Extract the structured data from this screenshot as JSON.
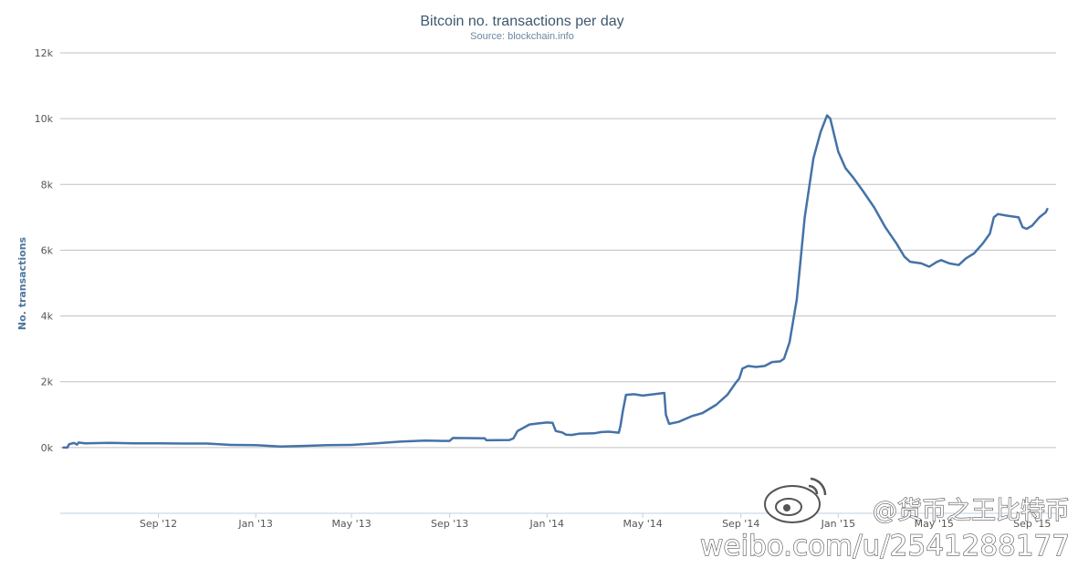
{
  "chart_data": {
    "type": "line",
    "title": "Bitcoin no. transactions per day",
    "subtitle": "Source: blockchain.info",
    "ylabel": "No. transactions",
    "xlabel": "",
    "y_min": -2000,
    "y_max": 12000,
    "y_ticks": [
      {
        "value": 0,
        "label": "0k"
      },
      {
        "value": 2000,
        "label": "2k"
      },
      {
        "value": 4000,
        "label": "4k"
      },
      {
        "value": 6000,
        "label": "6k"
      },
      {
        "value": 8000,
        "label": "8k"
      },
      {
        "value": 10000,
        "label": "10k"
      },
      {
        "value": 12000,
        "label": "12k"
      }
    ],
    "x_start": "2012-05-01",
    "x_end": "2015-10-01",
    "x_ticks": [
      {
        "date": "2012-09-01",
        "label": "Sep '12"
      },
      {
        "date": "2013-01-01",
        "label": "Jan '13"
      },
      {
        "date": "2013-05-01",
        "label": "May '13"
      },
      {
        "date": "2013-09-01",
        "label": "Sep '13"
      },
      {
        "date": "2014-01-01",
        "label": "Jan '14"
      },
      {
        "date": "2014-05-01",
        "label": "May '14"
      },
      {
        "date": "2014-09-01",
        "label": "Sep '14"
      },
      {
        "date": "2015-01-01",
        "label": "Jan '15"
      },
      {
        "date": "2015-05-01",
        "label": "May '15"
      },
      {
        "date": "2015-09-01",
        "label": "Sep '15"
      }
    ],
    "grid": true,
    "legend": "none",
    "series": [
      {
        "color": "#4572a7",
        "points": [
          [
            "2012-05-05",
            0
          ],
          [
            "2012-05-10",
            0
          ],
          [
            "2012-05-12",
            100
          ],
          [
            "2012-05-18",
            140
          ],
          [
            "2012-05-22",
            90
          ],
          [
            "2012-05-24",
            150
          ],
          [
            "2012-06-01",
            130
          ],
          [
            "2012-07-01",
            140
          ],
          [
            "2012-08-01",
            130
          ],
          [
            "2012-09-01",
            130
          ],
          [
            "2012-10-01",
            120
          ],
          [
            "2012-11-01",
            120
          ],
          [
            "2012-12-01",
            80
          ],
          [
            "2013-01-01",
            70
          ],
          [
            "2013-02-01",
            30
          ],
          [
            "2013-03-01",
            50
          ],
          [
            "2013-04-01",
            70
          ],
          [
            "2013-05-01",
            80
          ],
          [
            "2013-06-01",
            130
          ],
          [
            "2013-07-01",
            180
          ],
          [
            "2013-08-01",
            210
          ],
          [
            "2013-08-25",
            200
          ],
          [
            "2013-09-01",
            200
          ],
          [
            "2013-09-05",
            290
          ],
          [
            "2013-10-15",
            280
          ],
          [
            "2013-10-17",
            220
          ],
          [
            "2013-11-15",
            230
          ],
          [
            "2013-11-20",
            280
          ],
          [
            "2013-11-25",
            500
          ],
          [
            "2013-12-10",
            700
          ],
          [
            "2013-12-20",
            730
          ],
          [
            "2014-01-01",
            760
          ],
          [
            "2014-01-08",
            750
          ],
          [
            "2014-01-12",
            500
          ],
          [
            "2014-01-20",
            460
          ],
          [
            "2014-01-25",
            390
          ],
          [
            "2014-02-01",
            380
          ],
          [
            "2014-02-10",
            420
          ],
          [
            "2014-03-01",
            430
          ],
          [
            "2014-03-10",
            470
          ],
          [
            "2014-03-20",
            480
          ],
          [
            "2014-04-01",
            450
          ],
          [
            "2014-04-03",
            650
          ],
          [
            "2014-04-06",
            1100
          ],
          [
            "2014-04-10",
            1600
          ],
          [
            "2014-04-20",
            1620
          ],
          [
            "2014-05-01",
            1580
          ],
          [
            "2014-05-15",
            1620
          ],
          [
            "2014-05-28",
            1660
          ],
          [
            "2014-05-30",
            1000
          ],
          [
            "2014-06-03",
            720
          ],
          [
            "2014-06-15",
            780
          ],
          [
            "2014-07-01",
            950
          ],
          [
            "2014-07-15",
            1050
          ],
          [
            "2014-08-01",
            1300
          ],
          [
            "2014-08-15",
            1600
          ],
          [
            "2014-08-25",
            1950
          ],
          [
            "2014-08-30",
            2100
          ],
          [
            "2014-09-03",
            2400
          ],
          [
            "2014-09-10",
            2480
          ],
          [
            "2014-09-20",
            2450
          ],
          [
            "2014-10-01",
            2480
          ],
          [
            "2014-10-10",
            2600
          ],
          [
            "2014-10-20",
            2620
          ],
          [
            "2014-10-25",
            2700
          ],
          [
            "2014-11-01",
            3200
          ],
          [
            "2014-11-10",
            4500
          ],
          [
            "2014-11-20",
            7000
          ],
          [
            "2014-12-01",
            8800
          ],
          [
            "2014-12-10",
            9600
          ],
          [
            "2014-12-18",
            10100
          ],
          [
            "2014-12-22",
            10000
          ],
          [
            "2015-01-01",
            9000
          ],
          [
            "2015-01-10",
            8500
          ],
          [
            "2015-01-20",
            8200
          ],
          [
            "2015-02-01",
            7800
          ],
          [
            "2015-02-15",
            7300
          ],
          [
            "2015-03-01",
            6700
          ],
          [
            "2015-03-15",
            6200
          ],
          [
            "2015-03-25",
            5800
          ],
          [
            "2015-04-01",
            5650
          ],
          [
            "2015-04-15",
            5600
          ],
          [
            "2015-04-25",
            5500
          ],
          [
            "2015-05-05",
            5650
          ],
          [
            "2015-05-10",
            5700
          ],
          [
            "2015-05-20",
            5600
          ],
          [
            "2015-06-01",
            5550
          ],
          [
            "2015-06-10",
            5750
          ],
          [
            "2015-06-20",
            5900
          ],
          [
            "2015-07-01",
            6200
          ],
          [
            "2015-07-10",
            6500
          ],
          [
            "2015-07-15",
            7000
          ],
          [
            "2015-07-20",
            7100
          ],
          [
            "2015-08-01",
            7050
          ],
          [
            "2015-08-15",
            7000
          ],
          [
            "2015-08-20",
            6700
          ],
          [
            "2015-08-25",
            6650
          ],
          [
            "2015-09-01",
            6750
          ],
          [
            "2015-09-10",
            7000
          ],
          [
            "2015-09-18",
            7150
          ],
          [
            "2015-09-20",
            7250
          ]
        ]
      }
    ]
  },
  "watermark": {
    "line1": "@货币之王比特币",
    "line2": "weibo.com/u/2541288177",
    "icon": "weibo-logo-icon"
  }
}
